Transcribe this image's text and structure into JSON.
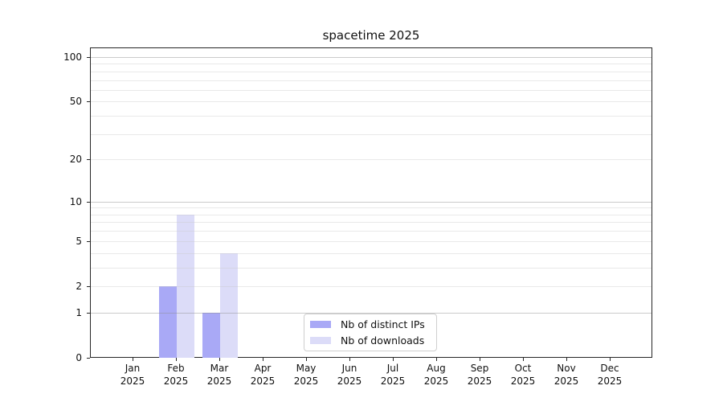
{
  "title": "spacetime 2025",
  "chart_data": {
    "type": "bar",
    "title": "spacetime 2025",
    "categories": [
      "Jan",
      "Feb",
      "Mar",
      "Apr",
      "May",
      "Jun",
      "Jul",
      "Aug",
      "Sep",
      "Oct",
      "Nov",
      "Dec"
    ],
    "year": "2025",
    "series": [
      {
        "name": "Nb of distinct IPs",
        "color": "#a9a9f6",
        "values": [
          0,
          2,
          1,
          0,
          0,
          0,
          0,
          0,
          0,
          0,
          0,
          0
        ]
      },
      {
        "name": "Nb of downloads",
        "color": "#dcdcf8",
        "values": [
          0,
          8,
          4,
          0,
          0,
          0,
          0,
          0,
          0,
          0,
          0,
          0
        ]
      }
    ],
    "y_axis": {
      "scale": "log1p",
      "ticks": [
        0,
        1,
        2,
        5,
        10,
        20,
        50,
        100
      ],
      "major_gridlines": [
        1,
        10,
        100
      ],
      "minor_gridlines": [
        2,
        3,
        4,
        5,
        6,
        7,
        8,
        9,
        20,
        30,
        40,
        50,
        60,
        70,
        80,
        90
      ],
      "ylim": [
        0,
        116
      ]
    },
    "legend_position": "bottom-center",
    "grid": true,
    "colors": {
      "distinct_ips_bar": "#a9a9f6",
      "downloads_bar": "#dcdcf8",
      "major_grid": "#cbcbcb",
      "minor_grid": "#e9e9e9",
      "spine": "#262626",
      "background": "#ffffff",
      "text": "#111111"
    }
  }
}
